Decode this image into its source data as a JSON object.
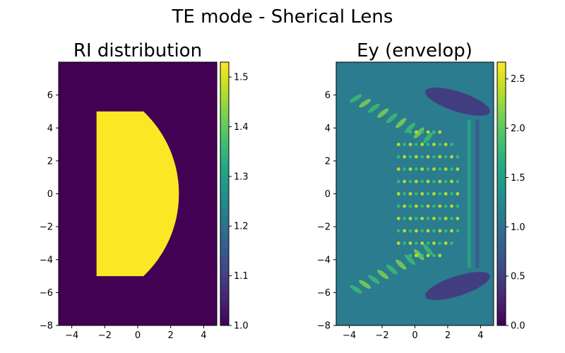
{
  "figure": {
    "title": "TE mode - Sherical Lens"
  },
  "chart_data": [
    {
      "type": "heatmap",
      "title": "RI distribution",
      "xlim": [
        -4.8,
        4.8
      ],
      "ylim": [
        -8,
        8
      ],
      "xticks": [
        "−4",
        "−2",
        "0",
        "2",
        "4"
      ],
      "xtick_values": [
        -4,
        -2,
        0,
        2,
        4
      ],
      "yticks": [
        "−8",
        "−6",
        "−4",
        "−2",
        "0",
        "2",
        "4",
        "6"
      ],
      "ytick_values": [
        -8,
        -6,
        -4,
        -2,
        0,
        2,
        4,
        6
      ],
      "colorbar": {
        "range": [
          1.0,
          1.53
        ],
        "ticks": [
          "1.0",
          "1.1",
          "1.2",
          "1.3",
          "1.4",
          "1.5"
        ],
        "tick_values": [
          1.0,
          1.1,
          1.2,
          1.3,
          1.4,
          1.5
        ]
      },
      "colormap": "viridis",
      "background_value": 1.0,
      "lens_value": 1.53,
      "lens": {
        "flat_x": -2.5,
        "y_extent": [
          -5,
          5
        ],
        "sphere_center_x": -2.5,
        "sphere_radius": 5
      }
    },
    {
      "type": "heatmap",
      "title": "Ey (envelop)",
      "xlim": [
        -4.8,
        4.8
      ],
      "ylim": [
        -8,
        8
      ],
      "xticks": [
        "−4",
        "−2",
        "0",
        "2",
        "4"
      ],
      "xtick_values": [
        -4,
        -2,
        0,
        2,
        4
      ],
      "yticks": [
        "−8",
        "−6",
        "−4",
        "−2",
        "0",
        "2",
        "4",
        "6"
      ],
      "ytick_values": [
        -8,
        -6,
        -4,
        -2,
        0,
        2,
        4,
        6
      ],
      "colorbar": {
        "range": [
          0.0,
          2.67
        ],
        "ticks": [
          "0.0",
          "0.5",
          "1.0",
          "1.5",
          "2.0",
          "2.5"
        ],
        "tick_values": [
          0.0,
          0.5,
          1.0,
          1.5,
          2.0,
          2.5
        ]
      },
      "colormap": "viridis",
      "background_value": 1.0
    }
  ]
}
